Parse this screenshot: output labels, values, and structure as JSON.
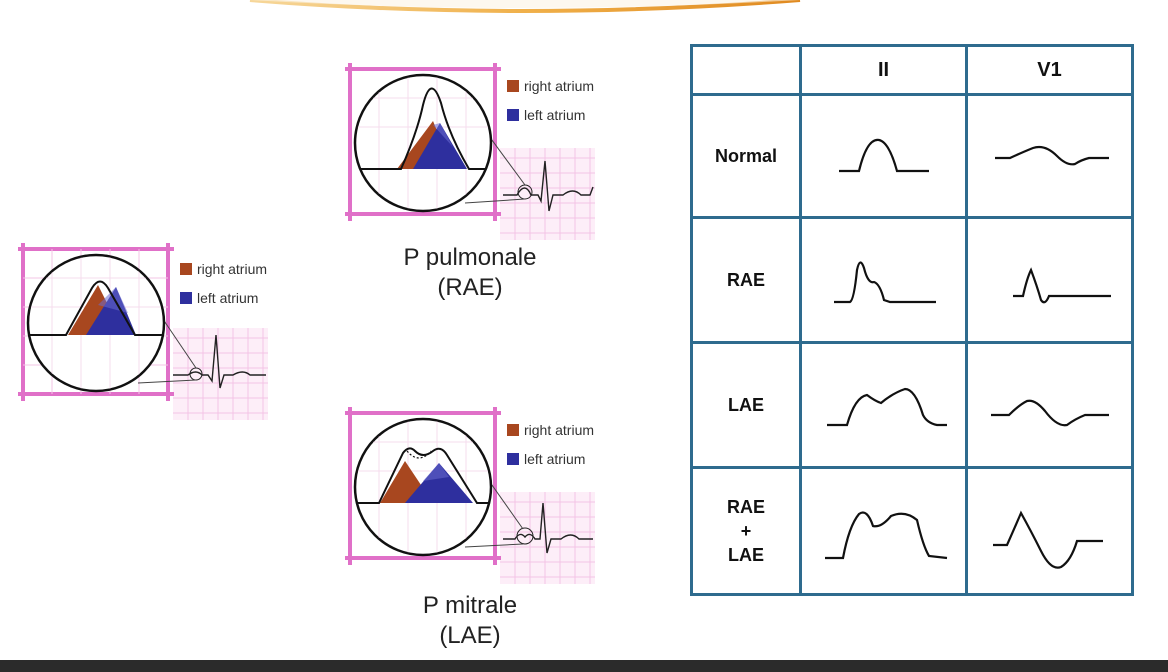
{
  "colors": {
    "grid_border": "#e070c8",
    "grid_line": "#f3c4e6",
    "right_atrium": "#a8471f",
    "left_atrium": "#2e2f9e",
    "table_border": "#2e6b8e",
    "arc": "#e8a23a"
  },
  "panels": {
    "normal": {
      "legend_right": "right atrium",
      "legend_left": "left atrium"
    },
    "pulmonale": {
      "legend_right": "right atrium",
      "legend_left": "left atrium",
      "caption_line1": "P pulmonale",
      "caption_line2": "(RAE)"
    },
    "mitrale": {
      "legend_right": "right atrium",
      "legend_left": "left atrium",
      "caption_line1": "P mitrale",
      "caption_line2": "(LAE)"
    }
  },
  "table": {
    "headers": [
      "",
      "II",
      "V1"
    ],
    "rows": [
      {
        "label": "Normal"
      },
      {
        "label": "RAE"
      },
      {
        "label": "LAE"
      },
      {
        "label_line1": "RAE",
        "label_line2": "+",
        "label_line3": "LAE"
      }
    ]
  }
}
